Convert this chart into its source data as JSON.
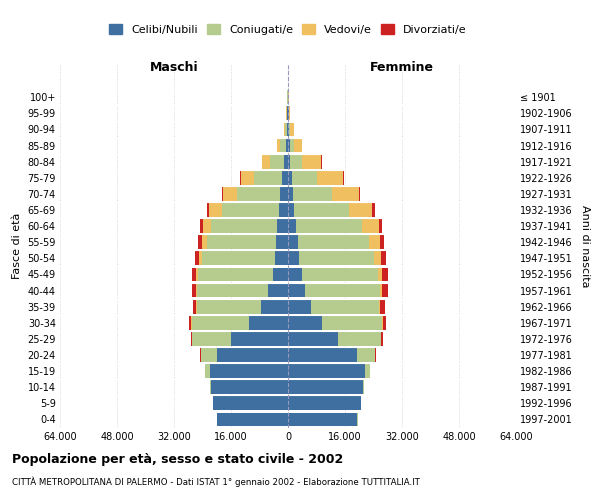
{
  "age_groups": [
    "0-4",
    "5-9",
    "10-14",
    "15-19",
    "20-24",
    "25-29",
    "30-34",
    "35-39",
    "40-44",
    "45-49",
    "50-54",
    "55-59",
    "60-64",
    "65-69",
    "70-74",
    "75-79",
    "80-84",
    "85-89",
    "90-94",
    "95-99",
    "100+"
  ],
  "birth_years": [
    "1997-2001",
    "1992-1996",
    "1987-1991",
    "1982-1986",
    "1977-1981",
    "1972-1976",
    "1967-1971",
    "1962-1966",
    "1957-1961",
    "1952-1956",
    "1947-1951",
    "1942-1946",
    "1937-1941",
    "1932-1936",
    "1927-1931",
    "1922-1926",
    "1917-1921",
    "1912-1916",
    "1907-1911",
    "1902-1906",
    "≤ 1901"
  ],
  "male_celibe": [
    20000,
    21000,
    21500,
    22000,
    20000,
    16000,
    11000,
    7500,
    5500,
    4200,
    3600,
    3300,
    3000,
    2600,
    2200,
    1600,
    1000,
    700,
    400,
    200,
    100
  ],
  "male_coniugato": [
    50,
    100,
    350,
    1200,
    4500,
    11000,
    16000,
    18000,
    20000,
    21000,
    20500,
    19500,
    18500,
    16000,
    12000,
    8000,
    4000,
    1600,
    500,
    150,
    50
  ],
  "male_vedovo": [
    2,
    3,
    5,
    10,
    20,
    60,
    120,
    200,
    350,
    550,
    850,
    1400,
    2500,
    3600,
    4100,
    3700,
    2200,
    900,
    350,
    120,
    60
  ],
  "male_divorziato": [
    5,
    10,
    15,
    30,
    100,
    300,
    700,
    1000,
    1200,
    1300,
    1200,
    1000,
    800,
    500,
    300,
    150,
    60,
    25,
    10,
    5,
    3
  ],
  "female_celibe": [
    19500,
    20500,
    21000,
    21500,
    19500,
    14000,
    9500,
    6500,
    4800,
    3800,
    3200,
    2700,
    2200,
    1700,
    1300,
    1000,
    700,
    500,
    300,
    180,
    90
  ],
  "female_coniugata": [
    50,
    100,
    350,
    1500,
    5000,
    12000,
    17000,
    19000,
    21000,
    21500,
    21000,
    20000,
    18500,
    15500,
    11000,
    7000,
    3200,
    1200,
    380,
    100,
    40
  ],
  "female_vedova": [
    2,
    3,
    5,
    15,
    30,
    80,
    200,
    400,
    700,
    1100,
    1800,
    3000,
    4800,
    6500,
    7500,
    7500,
    5500,
    2300,
    900,
    350,
    150
  ],
  "female_divorziata": [
    5,
    10,
    20,
    40,
    150,
    450,
    900,
    1300,
    1500,
    1600,
    1500,
    1200,
    900,
    600,
    350,
    150,
    60,
    25,
    10,
    5,
    3
  ],
  "color_celibe": "#3e6fa0",
  "color_coniugato": "#b5cc8e",
  "color_vedovo": "#f0c060",
  "color_divorziato": "#cc2222",
  "title_bold": "Popolazione per età, sesso e stato civile - 2002",
  "subtitle": "CITTÀ METROPOLITANA DI PALERMO - Dati ISTAT 1° gennaio 2002 - Elaborazione TUTTITALIA.IT",
  "xlabel_left": "Maschi",
  "xlabel_right": "Femmine",
  "ylabel_left": "Fasce di età",
  "ylabel_right": "Anni di nascita",
  "xlim": 64000,
  "xticklabels": [
    "64.000",
    "48.000",
    "32.000",
    "16.000",
    "0",
    "16.000",
    "32.000",
    "48.000",
    "64.000"
  ],
  "background_color": "#ffffff",
  "grid_color": "#cccccc"
}
